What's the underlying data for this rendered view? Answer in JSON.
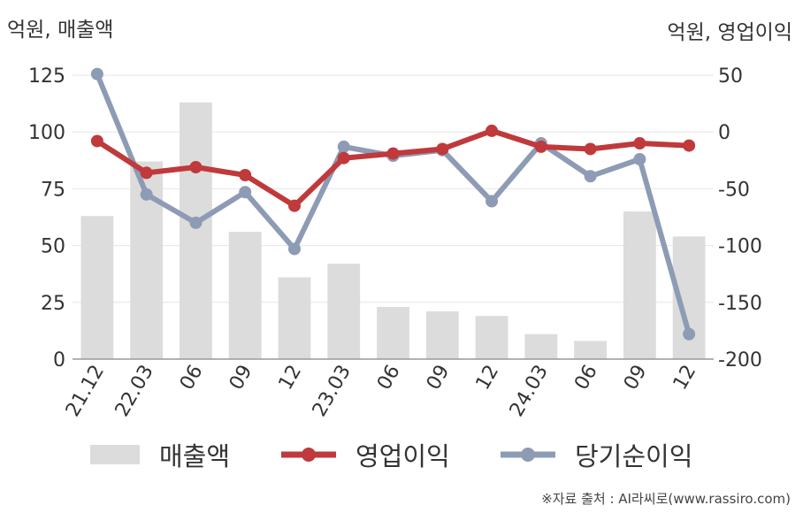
{
  "units": {
    "left": "억원, 매출액",
    "right": "억원, 영업이익"
  },
  "legend": {
    "bar": "매출액",
    "line1": "영업이익",
    "line2": "당기순이익"
  },
  "source": "※자료 출처 : AI라씨로(www.rassiro.com)",
  "colors": {
    "bar": "#dcdcdc",
    "op_income": "#c0393b",
    "net_income": "#8e9bb5",
    "grid": "#e6e6e6",
    "axis": "#999999"
  },
  "chart_data": {
    "type": "bar+line",
    "categories": [
      "21.12",
      "22.03",
      "06",
      "09",
      "12",
      "23.03",
      "06",
      "09",
      "12",
      "24.03",
      "06",
      "09",
      "12"
    ],
    "left_axis": {
      "ticks": [
        0,
        25,
        50,
        75,
        100,
        125
      ],
      "ylim": [
        0,
        125
      ]
    },
    "right_axis": {
      "ticks": [
        -200,
        -150,
        -100,
        -50,
        0,
        50
      ],
      "ylim": [
        -200,
        50
      ]
    },
    "series": [
      {
        "name": "매출액",
        "type": "bar",
        "axis": "left",
        "values": [
          63,
          87,
          113,
          56,
          36,
          42,
          23,
          21,
          19,
          11,
          8,
          65,
          54
        ]
      },
      {
        "name": "영업이익",
        "type": "line",
        "axis": "right",
        "values": [
          -8,
          -36,
          -31,
          -38,
          -65,
          -23,
          -19,
          -15,
          1,
          -13,
          -15,
          -10,
          -12
        ]
      },
      {
        "name": "당기순이익",
        "type": "line",
        "axis": "right",
        "values": [
          51,
          -55,
          -80,
          -53,
          -103,
          -13,
          -21,
          -16,
          -61,
          -10,
          -39,
          -24,
          -178
        ]
      }
    ],
    "grid": true,
    "legend_position": "bottom"
  }
}
